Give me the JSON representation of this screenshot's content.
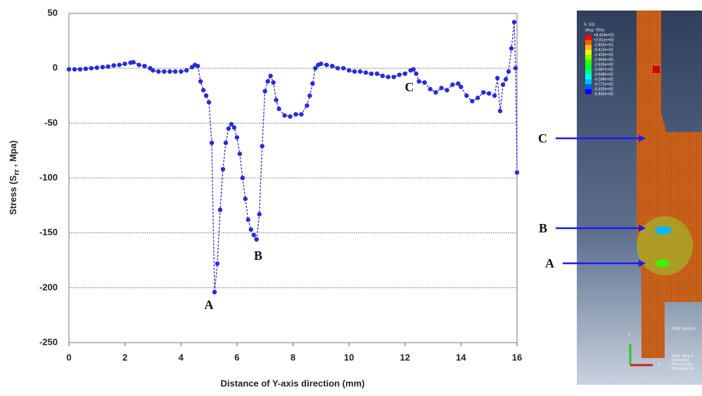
{
  "chart_data": {
    "type": "line",
    "ylabel": [
      "Stress (S",
      "rr",
      " , Mpa)"
    ],
    "xlabel": "Distance of Y-axis direction (mm)",
    "x": [
      0,
      0.2,
      0.4,
      0.6,
      0.8,
      1.0,
      1.2,
      1.4,
      1.6,
      1.8,
      2.0,
      2.2,
      2.3,
      2.5,
      2.7,
      2.9,
      3.0,
      3.2,
      3.4,
      3.6,
      3.8,
      4.0,
      4.2,
      4.4,
      4.5,
      4.6,
      4.7,
      4.8,
      4.9,
      5.0,
      5.1,
      5.2,
      5.3,
      5.4,
      5.5,
      5.6,
      5.7,
      5.8,
      5.9,
      6.0,
      6.1,
      6.2,
      6.3,
      6.4,
      6.5,
      6.6,
      6.7,
      6.8,
      6.9,
      7.0,
      7.1,
      7.2,
      7.3,
      7.4,
      7.5,
      7.7,
      7.9,
      8.1,
      8.3,
      8.5,
      8.6,
      8.7,
      8.8,
      8.9,
      9.0,
      9.2,
      9.4,
      9.6,
      9.8,
      10.0,
      10.2,
      10.4,
      10.6,
      10.8,
      11.0,
      11.2,
      11.4,
      11.6,
      11.8,
      12.0,
      12.2,
      12.3,
      12.4,
      12.5,
      12.7,
      12.9,
      13.1,
      13.3,
      13.5,
      13.7,
      13.9,
      14.0,
      14.2,
      14.4,
      14.6,
      14.8,
      15.0,
      15.2,
      15.3,
      15.4,
      15.5,
      15.6,
      15.7,
      15.8,
      15.9,
      15.95,
      16.0
    ],
    "series": [
      {
        "color": "#2b2bd6",
        "values": [
          -1,
          -1,
          -1,
          -0.5,
          0,
          0.5,
          1,
          1.5,
          2.5,
          3,
          4,
          5,
          5.5,
          3,
          2,
          0,
          -2,
          -3,
          -3,
          -3,
          -3,
          -3,
          -2,
          1,
          3,
          2,
          -12,
          -20,
          -25,
          -31,
          -68,
          -204,
          -178,
          -129,
          -92,
          -68,
          -55,
          -51,
          -54,
          -63,
          -78,
          -100,
          -119,
          -138,
          -147,
          -152,
          -156,
          -133,
          -71,
          -21,
          -12,
          -7,
          -13,
          -29,
          -37,
          -43,
          -44,
          -42,
          -42,
          -34,
          -25,
          -14,
          0,
          3,
          4,
          3,
          2,
          0,
          0,
          -2,
          -3,
          -3,
          -4,
          -5,
          -5,
          -7,
          -8,
          -8,
          -6,
          -5,
          -2,
          -1,
          -5,
          -12,
          -13,
          -19,
          -22,
          -18,
          -20,
          -15,
          -14,
          -17,
          -25,
          -30,
          -27,
          -22,
          -23,
          -25,
          -9,
          -39,
          -15,
          -10,
          -3,
          18,
          42,
          0,
          -95
        ]
      }
    ],
    "xlim": [
      0,
      16
    ],
    "xticks": [
      0,
      2,
      4,
      6,
      8,
      10,
      12,
      14,
      16
    ],
    "ylim": [
      -250,
      50
    ],
    "yticks": [
      50,
      0,
      -50,
      -100,
      -150,
      -200,
      -250
    ],
    "grid": true,
    "annotations": [
      "A",
      "B",
      "C"
    ]
  },
  "figure": {
    "legend_title": "S, S11",
    "legend_subtitle": "(Avg: 75%)",
    "legend_values": [
      "+8.424e+01",
      "+2.811e+01",
      "-2.802e+01",
      "-8.415e+01",
      "-1.403e+02",
      "-1.964e+02",
      "-2.525e+02",
      "-3.087e+02",
      "-3.648e+02",
      "-4.209e+02",
      "-4.771e+02",
      "-5.332e+02",
      "-5.893e+02"
    ],
    "labels": [
      "C",
      "B",
      "A"
    ],
    "odb": "ODB: stress.o",
    "info": [
      "Step: Step-1",
      "Increment",
      "Primary Var:",
      "Deformed Va"
    ],
    "axis_y": "Y",
    "axis_x": "X"
  }
}
